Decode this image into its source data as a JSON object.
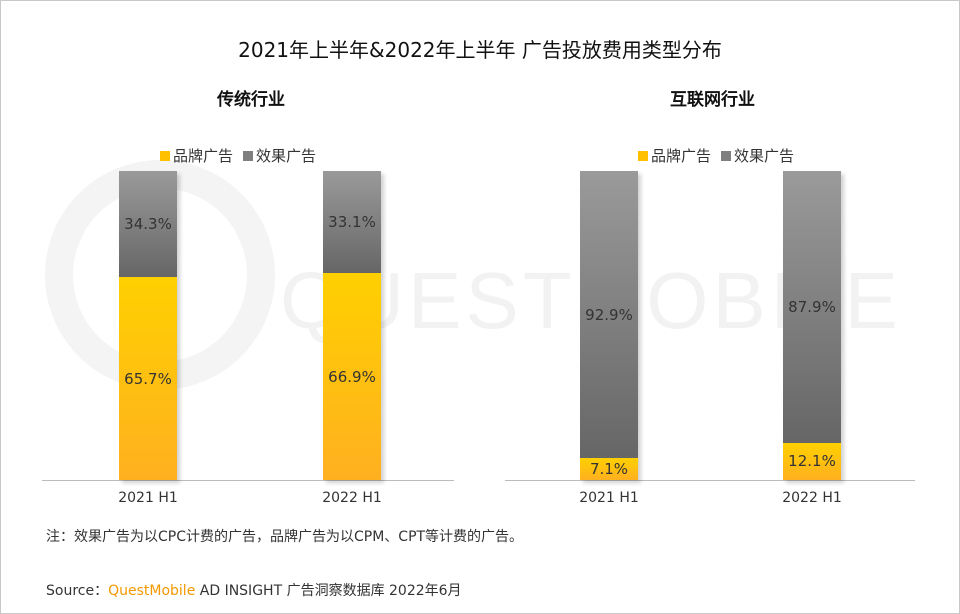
{
  "title": "2021年上半年&2022年上半年 广告投放费用类型分布",
  "watermark": "QUESTMOBILE",
  "legend": {
    "brand": "品牌广告",
    "performance": "效果广告"
  },
  "colors": {
    "brand": "#ffc000",
    "performance": "#7f7f7f"
  },
  "chart_data": [
    {
      "type": "bar",
      "stacked": true,
      "title": "传统行业",
      "categories": [
        "2021 H1",
        "2022 H1"
      ],
      "ylim": [
        0,
        100
      ],
      "series": [
        {
          "name": "品牌广告",
          "values": [
            65.7,
            66.9
          ],
          "labels": [
            "65.7%",
            "66.9%"
          ]
        },
        {
          "name": "效果广告",
          "values": [
            34.3,
            33.1
          ],
          "labels": [
            "34.3%",
            "33.1%"
          ]
        }
      ],
      "legend": "top"
    },
    {
      "type": "bar",
      "stacked": true,
      "title": "互联网行业",
      "categories": [
        "2021 H1",
        "2022 H1"
      ],
      "ylim": [
        0,
        100
      ],
      "series": [
        {
          "name": "品牌广告",
          "values": [
            7.1,
            12.1
          ],
          "labels": [
            "7.1%",
            "12.1%"
          ]
        },
        {
          "name": "效果广告",
          "values": [
            92.9,
            87.9
          ],
          "labels": [
            "92.9%",
            "87.9%"
          ]
        }
      ],
      "legend": "top"
    }
  ],
  "note": "注：效果广告为以CPC计费的广告，品牌广告为以CPM、CPT等计费的广告。",
  "source": {
    "label": "Source：",
    "brand": "QuestMobile",
    "text": " AD INSIGHT 广告洞察数据库 2022年6月"
  }
}
